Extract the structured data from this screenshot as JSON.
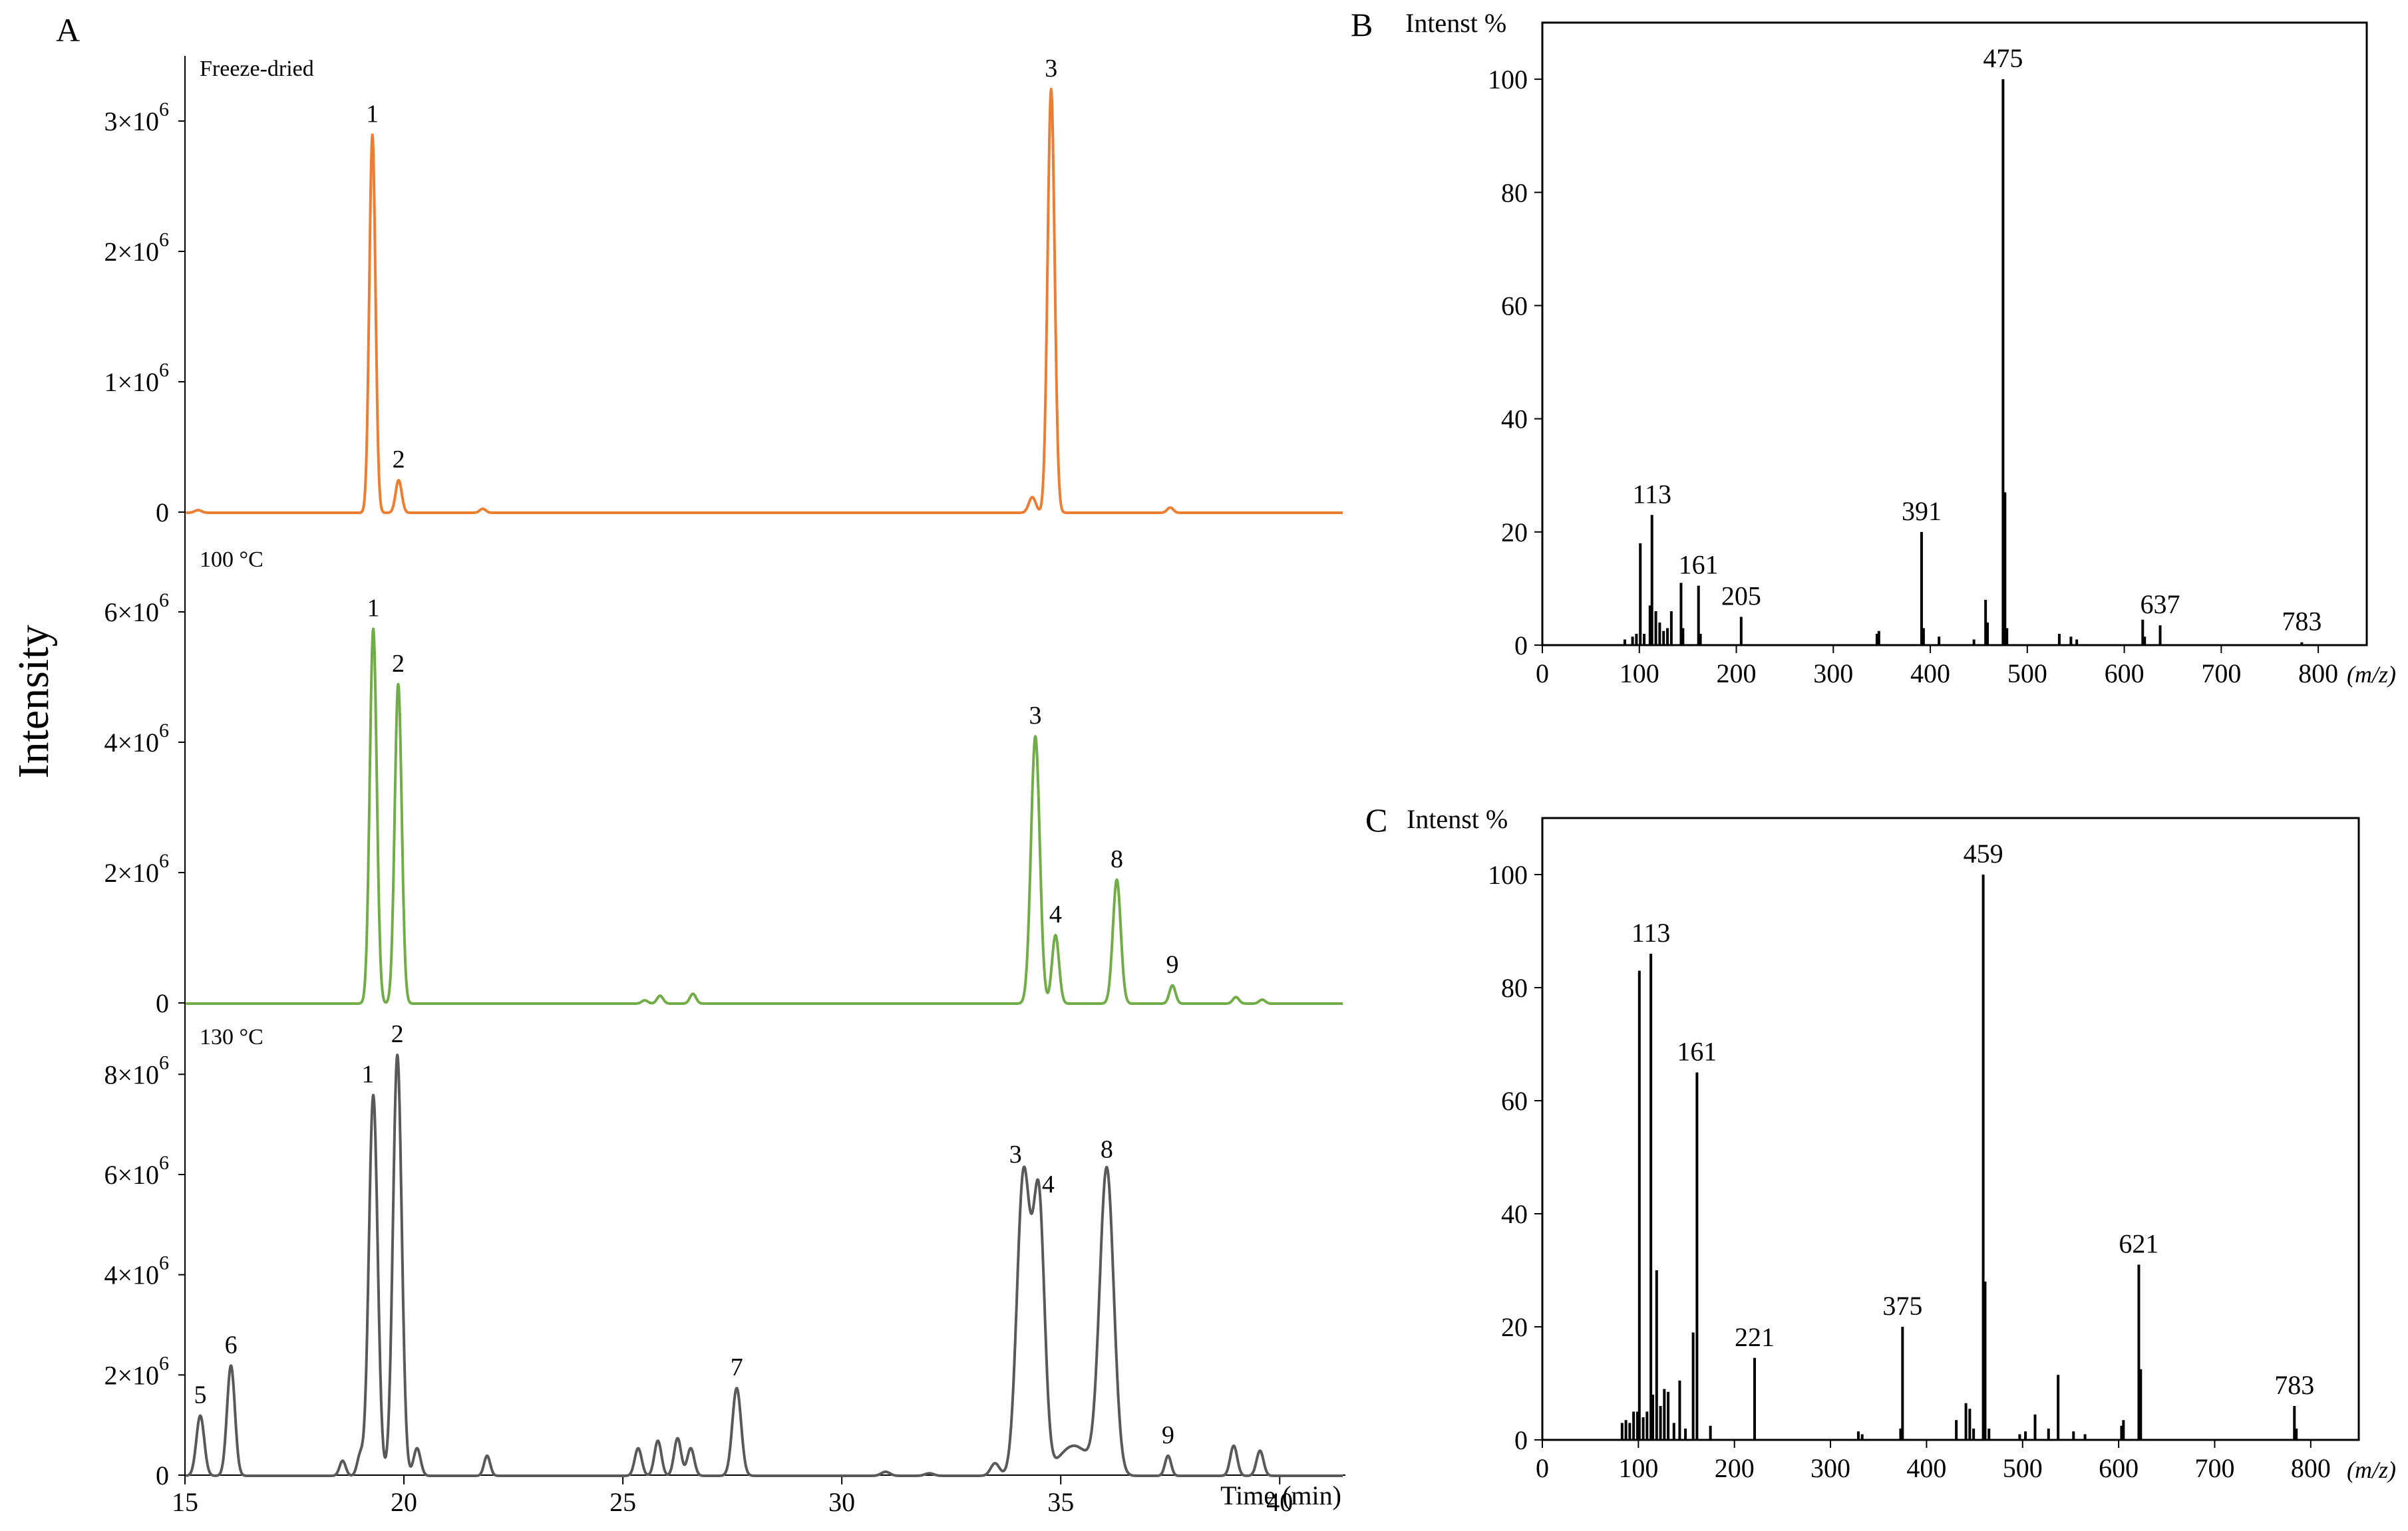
{
  "panels": {
    "A": {
      "letter": "A",
      "ylabel": "Intensity",
      "xlabel": "Time (min)"
    },
    "B": {
      "letter": "B",
      "ylabel": "Intenst %",
      "xlabel": "(m/z)"
    },
    "C": {
      "letter": "C",
      "ylabel": "Intenst %",
      "xlabel": "(m/z)"
    }
  },
  "chart_data": [
    {
      "id": "A",
      "type": "line",
      "xlabel": "Time (min)",
      "ylabel": "Intensity",
      "xlim": [
        15,
        41.5
      ],
      "xticks": [
        "15",
        "20",
        "25",
        "30",
        "35",
        "40"
      ],
      "tick_base": "×10",
      "tick_exp": "6",
      "series": [
        {
          "name": "Freeze-dried",
          "color": "#ED7D31",
          "ylim": [
            0,
            3.5
          ],
          "yticks": [
            "0",
            "1",
            "2",
            "3"
          ],
          "peaks": [
            {
              "t": 15.3,
              "h": 0.02,
              "w": 0.08
            },
            {
              "t": 19.28,
              "h": 2.9,
              "w": 0.07,
              "label": "1"
            },
            {
              "t": 19.88,
              "h": 0.25,
              "w": 0.07,
              "label": "2"
            },
            {
              "t": 21.8,
              "h": 0.03,
              "w": 0.07
            },
            {
              "t": 34.35,
              "h": 0.12,
              "w": 0.08
            },
            {
              "t": 34.78,
              "h": 3.25,
              "w": 0.08,
              "label": "3"
            },
            {
              "t": 37.5,
              "h": 0.04,
              "w": 0.07
            }
          ]
        },
        {
          "name": "100 °C",
          "color": "#70AD47",
          "ylim": [
            0,
            7
          ],
          "yticks": [
            "0",
            "2",
            "4",
            "6"
          ],
          "peaks": [
            {
              "t": 19.3,
              "h": 5.75,
              "w": 0.08,
              "label": "1"
            },
            {
              "t": 19.87,
              "h": 4.9,
              "w": 0.08,
              "label": "2"
            },
            {
              "t": 25.5,
              "h": 0.05,
              "w": 0.07
            },
            {
              "t": 25.85,
              "h": 0.12,
              "w": 0.07
            },
            {
              "t": 26.6,
              "h": 0.15,
              "w": 0.07
            },
            {
              "t": 34.42,
              "h": 4.1,
              "w": 0.1,
              "label": "3"
            },
            {
              "t": 34.88,
              "h": 1.05,
              "w": 0.08,
              "label": "4"
            },
            {
              "t": 36.28,
              "h": 1.9,
              "w": 0.09,
              "label": "8"
            },
            {
              "t": 37.55,
              "h": 0.28,
              "w": 0.07,
              "label": "9"
            },
            {
              "t": 39.0,
              "h": 0.1,
              "w": 0.07
            },
            {
              "t": 39.6,
              "h": 0.06,
              "w": 0.07
            }
          ]
        },
        {
          "name": "130 °C",
          "color": "#595959",
          "ylim": [
            0,
            9
          ],
          "yticks": [
            "0",
            "2",
            "4",
            "6",
            "8"
          ],
          "peaks": [
            {
              "t": 15.35,
              "h": 1.2,
              "w": 0.09,
              "label": "5"
            },
            {
              "t": 16.05,
              "h": 2.2,
              "w": 0.09,
              "label": "6"
            },
            {
              "t": 18.6,
              "h": 0.3,
              "w": 0.07
            },
            {
              "t": 19.0,
              "h": 0.4,
              "w": 0.07
            },
            {
              "t": 19.3,
              "h": 7.6,
              "w": 0.1,
              "label": "1"
            },
            {
              "t": 19.85,
              "h": 8.4,
              "w": 0.1,
              "label": "2"
            },
            {
              "t": 20.3,
              "h": 0.55,
              "w": 0.08
            },
            {
              "t": 21.9,
              "h": 0.4,
              "w": 0.07
            },
            {
              "t": 25.35,
              "h": 0.55,
              "w": 0.08
            },
            {
              "t": 25.8,
              "h": 0.7,
              "w": 0.08
            },
            {
              "t": 26.25,
              "h": 0.75,
              "w": 0.08
            },
            {
              "t": 26.55,
              "h": 0.55,
              "w": 0.08
            },
            {
              "t": 27.6,
              "h": 1.75,
              "w": 0.1,
              "label": "7"
            },
            {
              "t": 31.0,
              "h": 0.08,
              "w": 0.1
            },
            {
              "t": 32.0,
              "h": 0.05,
              "w": 0.1
            },
            {
              "t": 33.5,
              "h": 0.25,
              "w": 0.1
            },
            {
              "t": 34.15,
              "h": 6.0,
              "w": 0.15,
              "label": "3"
            },
            {
              "t": 34.5,
              "h": 5.4,
              "w": 0.13,
              "label": "4"
            },
            {
              "t": 35.3,
              "h": 0.6,
              "w": 0.35
            },
            {
              "t": 36.05,
              "h": 6.1,
              "w": 0.16,
              "label": "8"
            },
            {
              "t": 37.45,
              "h": 0.4,
              "w": 0.07,
              "label": "9"
            },
            {
              "t": 38.95,
              "h": 0.6,
              "w": 0.08
            },
            {
              "t": 39.55,
              "h": 0.5,
              "w": 0.08
            }
          ]
        }
      ]
    },
    {
      "id": "B",
      "type": "bar",
      "xlabel": "(m/z)",
      "ylabel": "Intenst %",
      "xlim": [
        0,
        850
      ],
      "ylim": [
        0,
        110
      ],
      "xticks": [
        0,
        100,
        200,
        300,
        400,
        500,
        600,
        700,
        800
      ],
      "yticks": [
        0,
        20,
        40,
        60,
        80,
        100
      ],
      "peaks": [
        {
          "mz": 85,
          "v": 1
        },
        {
          "mz": 93,
          "v": 1.5
        },
        {
          "mz": 97,
          "v": 2
        },
        {
          "mz": 101,
          "v": 18
        },
        {
          "mz": 105,
          "v": 2
        },
        {
          "mz": 111,
          "v": 7
        },
        {
          "mz": 113,
          "v": 23,
          "label": "113"
        },
        {
          "mz": 117,
          "v": 6
        },
        {
          "mz": 121,
          "v": 4
        },
        {
          "mz": 125,
          "v": 2.5
        },
        {
          "mz": 129,
          "v": 3
        },
        {
          "mz": 133,
          "v": 6
        },
        {
          "mz": 143,
          "v": 11
        },
        {
          "mz": 145,
          "v": 3
        },
        {
          "mz": 161,
          "v": 10.5,
          "label": "161"
        },
        {
          "mz": 163,
          "v": 2
        },
        {
          "mz": 205,
          "v": 5,
          "label": "205"
        },
        {
          "mz": 345,
          "v": 2
        },
        {
          "mz": 347,
          "v": 2.5
        },
        {
          "mz": 391,
          "v": 20,
          "label": "391"
        },
        {
          "mz": 393,
          "v": 3
        },
        {
          "mz": 409,
          "v": 1.5
        },
        {
          "mz": 445,
          "v": 1
        },
        {
          "mz": 457,
          "v": 8
        },
        {
          "mz": 459,
          "v": 4
        },
        {
          "mz": 475,
          "v": 100,
          "label": "475"
        },
        {
          "mz": 477,
          "v": 27
        },
        {
          "mz": 479,
          "v": 3
        },
        {
          "mz": 533,
          "v": 2
        },
        {
          "mz": 545,
          "v": 1.5
        },
        {
          "mz": 551,
          "v": 1
        },
        {
          "mz": 619,
          "v": 4.5
        },
        {
          "mz": 621,
          "v": 1.5
        },
        {
          "mz": 637,
          "v": 3.5,
          "label": "637"
        },
        {
          "mz": 783,
          "v": 0.5,
          "label": "783"
        }
      ]
    },
    {
      "id": "C",
      "type": "bar",
      "xlabel": "(m/z)",
      "ylabel": "Intenst %",
      "xlim": [
        0,
        850
      ],
      "ylim": [
        0,
        110
      ],
      "xticks": [
        0,
        100,
        200,
        300,
        400,
        500,
        600,
        700,
        800
      ],
      "yticks": [
        0,
        20,
        40,
        60,
        80,
        100
      ],
      "peaks": [
        {
          "mz": 83,
          "v": 3
        },
        {
          "mz": 87,
          "v": 3.5
        },
        {
          "mz": 91,
          "v": 3
        },
        {
          "mz": 95,
          "v": 5
        },
        {
          "mz": 99,
          "v": 5
        },
        {
          "mz": 101,
          "v": 83
        },
        {
          "mz": 105,
          "v": 4
        },
        {
          "mz": 109,
          "v": 5
        },
        {
          "mz": 113,
          "v": 86,
          "label": "113"
        },
        {
          "mz": 115,
          "v": 8
        },
        {
          "mz": 119,
          "v": 30
        },
        {
          "mz": 123,
          "v": 6
        },
        {
          "mz": 127,
          "v": 9
        },
        {
          "mz": 131,
          "v": 8.5
        },
        {
          "mz": 137,
          "v": 3
        },
        {
          "mz": 143,
          "v": 10.5
        },
        {
          "mz": 149,
          "v": 2
        },
        {
          "mz": 157,
          "v": 19
        },
        {
          "mz": 161,
          "v": 65,
          "label": "161"
        },
        {
          "mz": 175,
          "v": 2.5
        },
        {
          "mz": 221,
          "v": 14.5,
          "label": "221"
        },
        {
          "mz": 329,
          "v": 1.5
        },
        {
          "mz": 333,
          "v": 1
        },
        {
          "mz": 373,
          "v": 2
        },
        {
          "mz": 375,
          "v": 20,
          "label": "375"
        },
        {
          "mz": 431,
          "v": 3.5
        },
        {
          "mz": 441,
          "v": 6.5
        },
        {
          "mz": 445,
          "v": 5.5
        },
        {
          "mz": 449,
          "v": 2
        },
        {
          "mz": 459,
          "v": 100,
          "label": "459"
        },
        {
          "mz": 461,
          "v": 28
        },
        {
          "mz": 465,
          "v": 2
        },
        {
          "mz": 497,
          "v": 1
        },
        {
          "mz": 503,
          "v": 1.5
        },
        {
          "mz": 513,
          "v": 4.5
        },
        {
          "mz": 527,
          "v": 2
        },
        {
          "mz": 537,
          "v": 11.5
        },
        {
          "mz": 553,
          "v": 1.5
        },
        {
          "mz": 565,
          "v": 1
        },
        {
          "mz": 603,
          "v": 2.5
        },
        {
          "mz": 605,
          "v": 3.5
        },
        {
          "mz": 621,
          "v": 31,
          "label": "621"
        },
        {
          "mz": 623,
          "v": 12.5
        },
        {
          "mz": 783,
          "v": 6,
          "label": "783"
        },
        {
          "mz": 785,
          "v": 2
        }
      ]
    }
  ]
}
